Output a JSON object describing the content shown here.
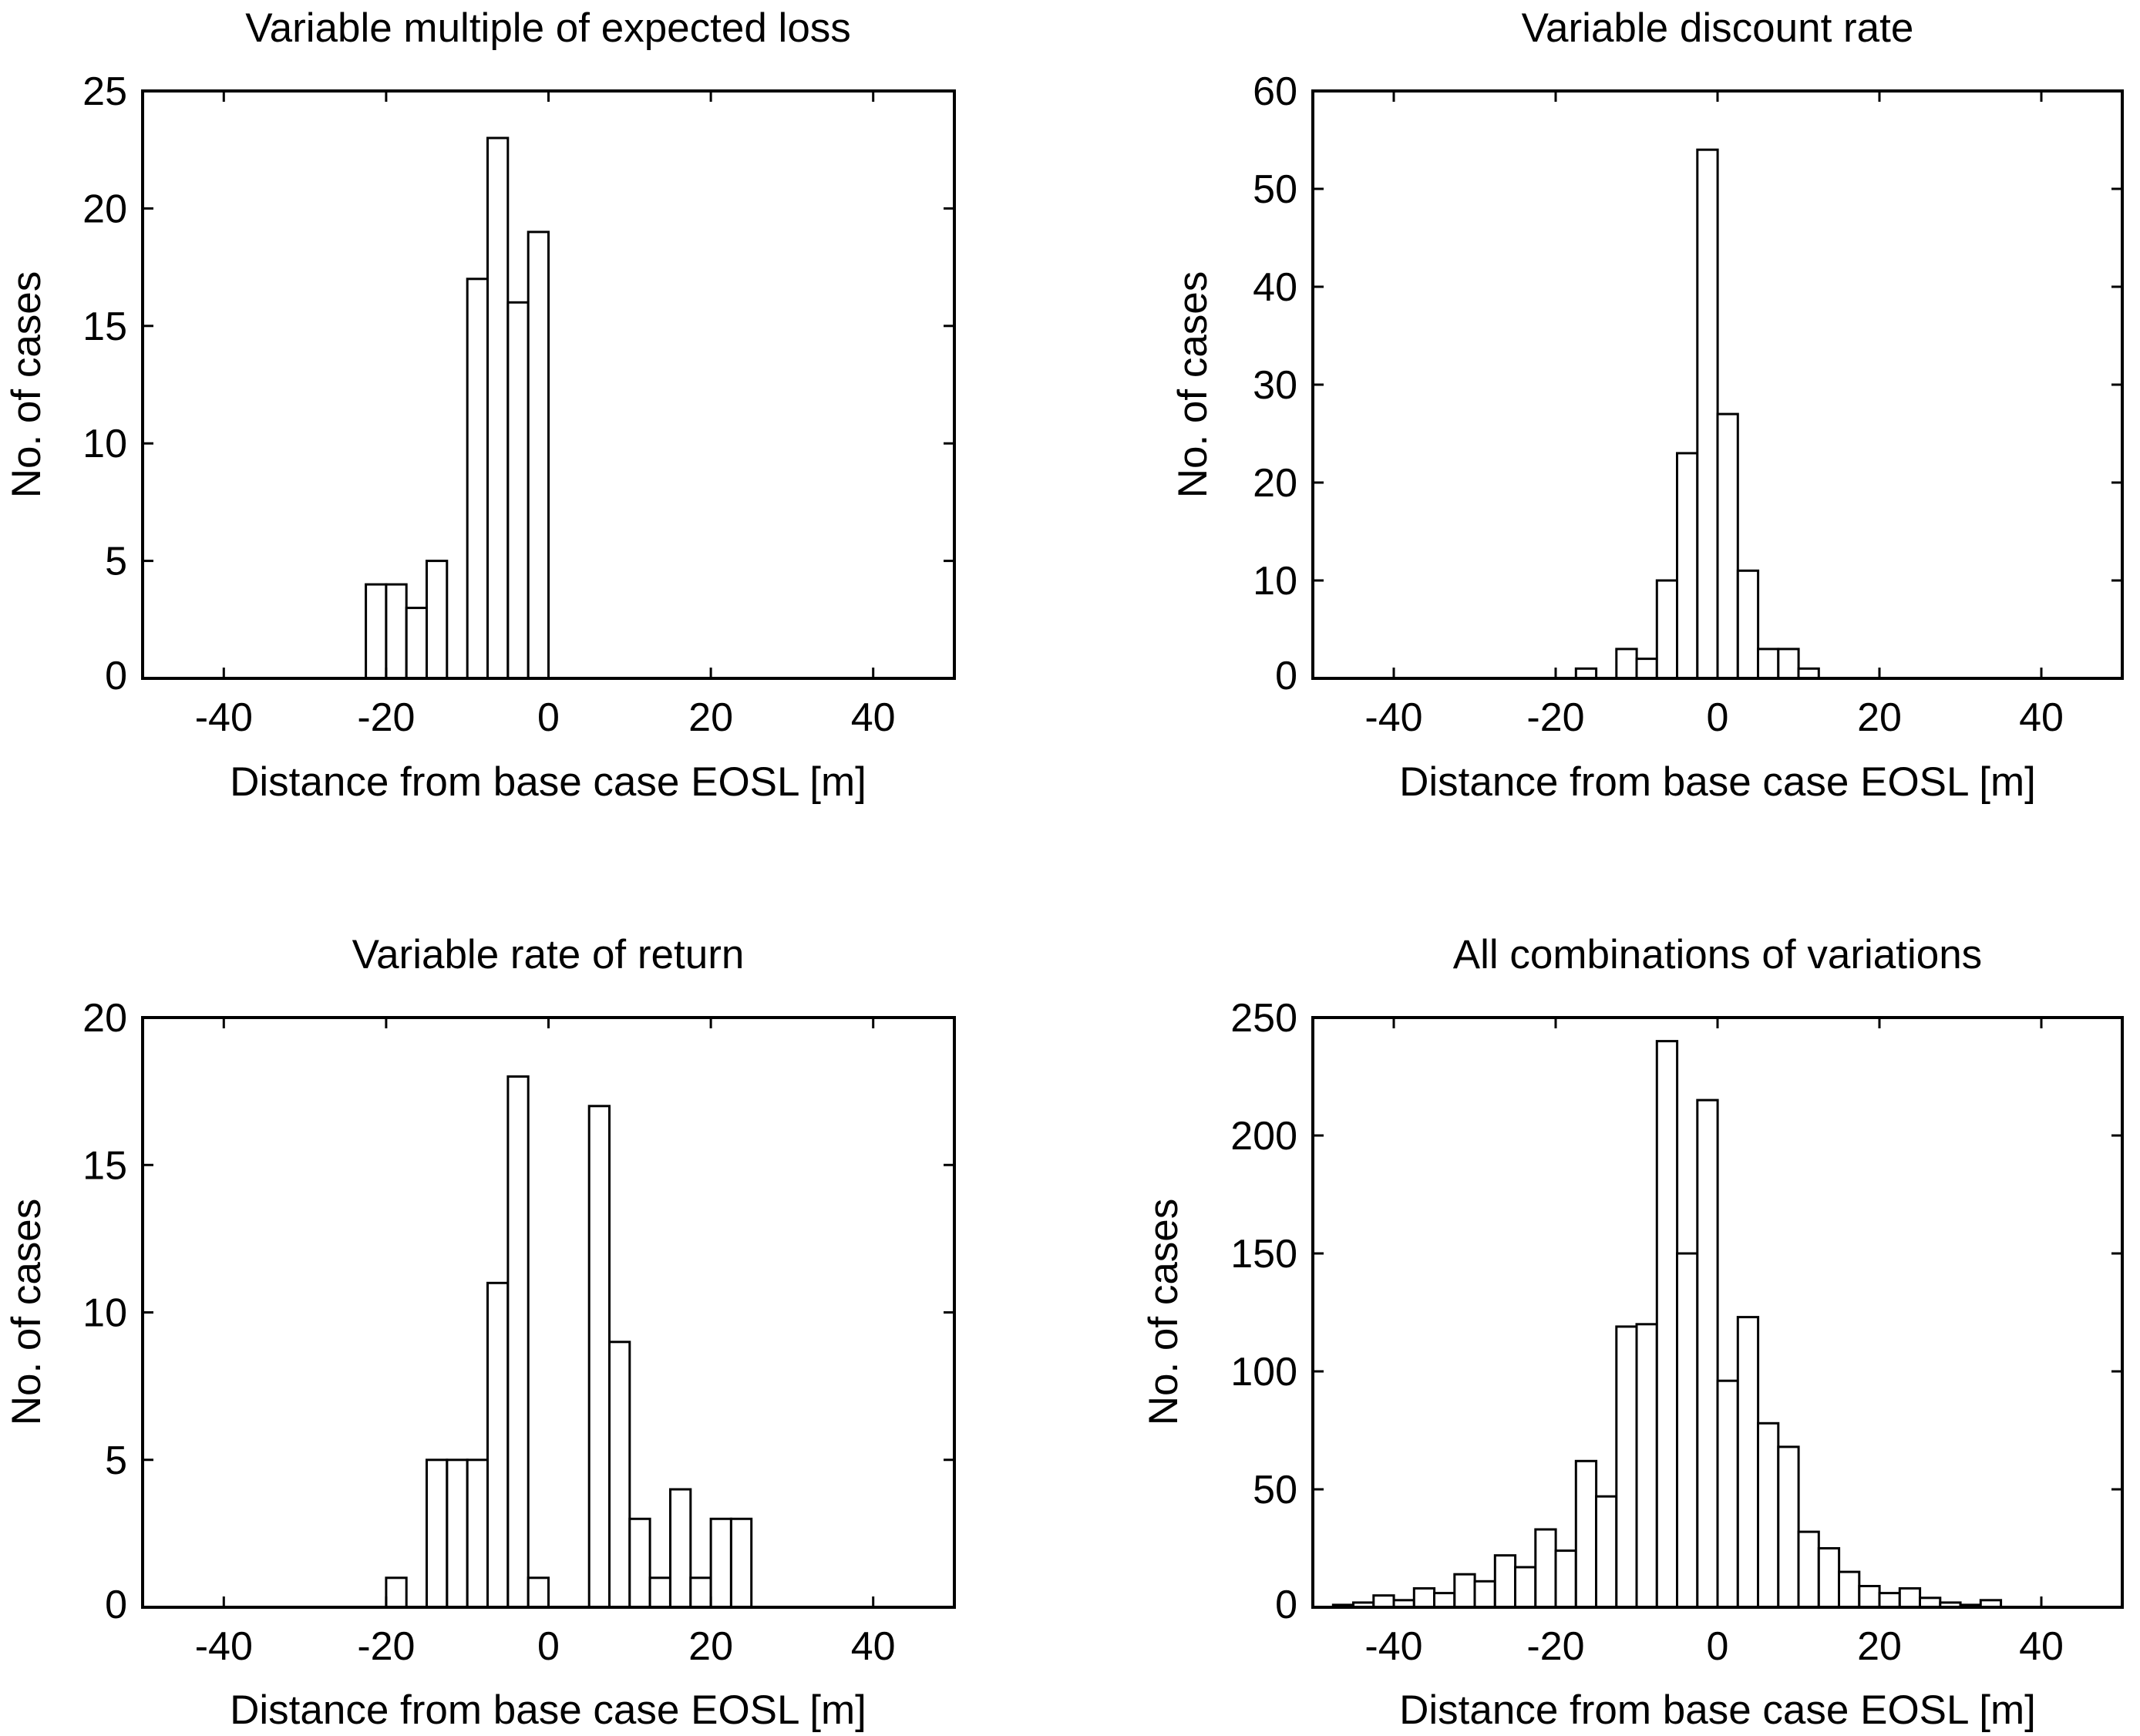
{
  "colors": {
    "bar_fill": "#ffffff",
    "bar_stroke": "#000000",
    "axis": "#000000"
  },
  "chart_data": [
    {
      "type": "bar",
      "title": "Variable multiple of expected loss",
      "xlabel": "Distance from base case EOSL [m]",
      "ylabel": "No. of cases",
      "xlim": [
        -50,
        50
      ],
      "ylim": [
        0,
        25
      ],
      "xticks": [
        -40,
        -20,
        0,
        20,
        40
      ],
      "xtick_labels": [
        "-40",
        "-20",
        "0",
        "20",
        "40"
      ],
      "yticks": [
        0,
        5,
        10,
        15,
        20,
        25
      ],
      "ytick_labels": [
        "0",
        "5",
        "10",
        "15",
        "20",
        "25"
      ],
      "bin_width": 2.5,
      "bins": [
        {
          "x": -21.25,
          "value": 4
        },
        {
          "x": -18.75,
          "value": 4
        },
        {
          "x": -16.25,
          "value": 3
        },
        {
          "x": -13.75,
          "value": 5
        },
        {
          "x": -8.75,
          "value": 17
        },
        {
          "x": -6.25,
          "value": 23
        },
        {
          "x": -3.75,
          "value": 16
        },
        {
          "x": -1.25,
          "value": 19
        }
      ]
    },
    {
      "type": "bar",
      "title": "Variable discount rate",
      "xlabel": "Distance from base case EOSL [m]",
      "ylabel": "No. of cases",
      "xlim": [
        -50,
        50
      ],
      "ylim": [
        0,
        60
      ],
      "xticks": [
        -40,
        -20,
        0,
        20,
        40
      ],
      "xtick_labels": [
        "-40",
        "-20",
        "0",
        "20",
        "40"
      ],
      "yticks": [
        0,
        10,
        20,
        30,
        40,
        50,
        60
      ],
      "ytick_labels": [
        "0",
        "10",
        "20",
        "30",
        "40",
        "50",
        "60"
      ],
      "bin_width": 2.5,
      "bins": [
        {
          "x": -16.25,
          "value": 1
        },
        {
          "x": -11.25,
          "value": 3
        },
        {
          "x": -8.75,
          "value": 2
        },
        {
          "x": -6.25,
          "value": 10
        },
        {
          "x": -3.75,
          "value": 23
        },
        {
          "x": -1.25,
          "value": 54
        },
        {
          "x": 1.25,
          "value": 27
        },
        {
          "x": 3.75,
          "value": 11
        },
        {
          "x": 6.25,
          "value": 3
        },
        {
          "x": 8.75,
          "value": 3
        },
        {
          "x": 11.25,
          "value": 1
        }
      ]
    },
    {
      "type": "bar",
      "title": "Variable rate of return",
      "xlabel": "Distance from base case EOSL [m]",
      "ylabel": "No. of cases",
      "xlim": [
        -50,
        50
      ],
      "ylim": [
        0,
        20
      ],
      "xticks": [
        -40,
        -20,
        0,
        20,
        40
      ],
      "xtick_labels": [
        "-40",
        "-20",
        "0",
        "20",
        "40"
      ],
      "yticks": [
        0,
        5,
        10,
        15,
        20
      ],
      "ytick_labels": [
        "0",
        "5",
        "10",
        "15",
        "20"
      ],
      "bin_width": 2.5,
      "bins": [
        {
          "x": -18.75,
          "value": 1
        },
        {
          "x": -13.75,
          "value": 5
        },
        {
          "x": -11.25,
          "value": 5
        },
        {
          "x": -8.75,
          "value": 5
        },
        {
          "x": -6.25,
          "value": 11
        },
        {
          "x": -3.75,
          "value": 18
        },
        {
          "x": -1.25,
          "value": 1
        },
        {
          "x": 6.25,
          "value": 17
        },
        {
          "x": 8.75,
          "value": 9
        },
        {
          "x": 11.25,
          "value": 3
        },
        {
          "x": 13.75,
          "value": 1
        },
        {
          "x": 16.25,
          "value": 4
        },
        {
          "x": 18.75,
          "value": 1
        },
        {
          "x": 21.25,
          "value": 3
        },
        {
          "x": 23.75,
          "value": 3
        }
      ]
    },
    {
      "type": "bar",
      "title": "All combinations of variations",
      "xlabel": "Distance from base case EOSL [m]",
      "ylabel": "No. of cases",
      "xlim": [
        -50,
        50
      ],
      "ylim": [
        0,
        250
      ],
      "xticks": [
        -40,
        -20,
        0,
        20,
        40
      ],
      "xtick_labels": [
        "-40",
        "-20",
        "0",
        "20",
        "40"
      ],
      "yticks": [
        0,
        50,
        100,
        150,
        200,
        250
      ],
      "ytick_labels": [
        "0",
        "50",
        "100",
        "150",
        "200",
        "250"
      ],
      "bin_width": 2.5,
      "bins": [
        {
          "x": -46.25,
          "value": 1
        },
        {
          "x": -43.75,
          "value": 2
        },
        {
          "x": -41.25,
          "value": 5
        },
        {
          "x": -38.75,
          "value": 3
        },
        {
          "x": -36.25,
          "value": 8
        },
        {
          "x": -33.75,
          "value": 6
        },
        {
          "x": -31.25,
          "value": 14
        },
        {
          "x": -28.75,
          "value": 11
        },
        {
          "x": -26.25,
          "value": 22
        },
        {
          "x": -23.75,
          "value": 17
        },
        {
          "x": -21.25,
          "value": 33
        },
        {
          "x": -18.75,
          "value": 24
        },
        {
          "x": -16.25,
          "value": 62
        },
        {
          "x": -13.75,
          "value": 47
        },
        {
          "x": -11.25,
          "value": 119
        },
        {
          "x": -8.75,
          "value": 120
        },
        {
          "x": -6.25,
          "value": 240
        },
        {
          "x": -3.75,
          "value": 150
        },
        {
          "x": -1.25,
          "value": 215
        },
        {
          "x": 1.25,
          "value": 96
        },
        {
          "x": 3.75,
          "value": 123
        },
        {
          "x": 6.25,
          "value": 78
        },
        {
          "x": 8.75,
          "value": 68
        },
        {
          "x": 11.25,
          "value": 32
        },
        {
          "x": 13.75,
          "value": 25
        },
        {
          "x": 16.25,
          "value": 15
        },
        {
          "x": 18.75,
          "value": 9
        },
        {
          "x": 21.25,
          "value": 6
        },
        {
          "x": 23.75,
          "value": 8
        },
        {
          "x": 26.25,
          "value": 4
        },
        {
          "x": 28.75,
          "value": 2
        },
        {
          "x": 31.25,
          "value": 1
        },
        {
          "x": 33.75,
          "value": 3
        }
      ]
    }
  ]
}
